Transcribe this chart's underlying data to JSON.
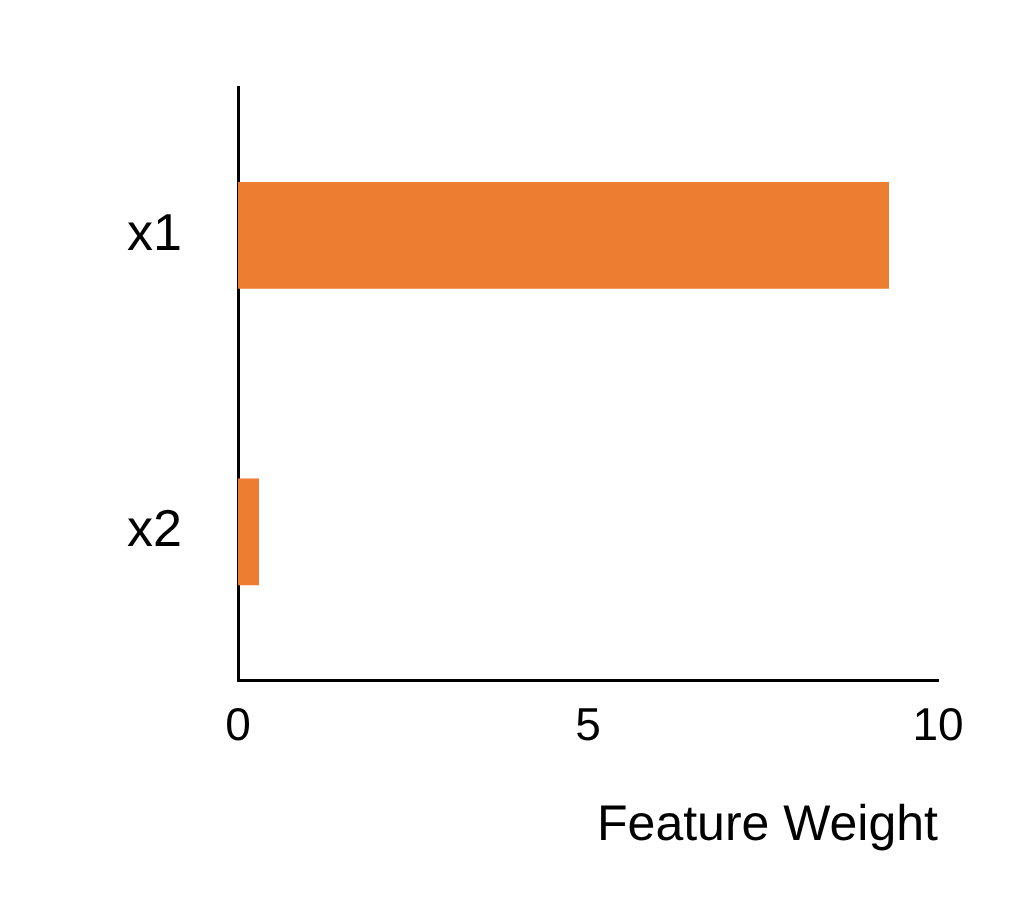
{
  "chart_data": {
    "type": "bar",
    "orientation": "horizontal",
    "categories": [
      "x1",
      "x2"
    ],
    "values": [
      9.3,
      0.3
    ],
    "color": "#ed7d31",
    "xlabel": "Feature Weight",
    "xlim": [
      0,
      10
    ],
    "xticks": [
      0,
      5,
      10
    ],
    "grid": false,
    "legend": false
  }
}
